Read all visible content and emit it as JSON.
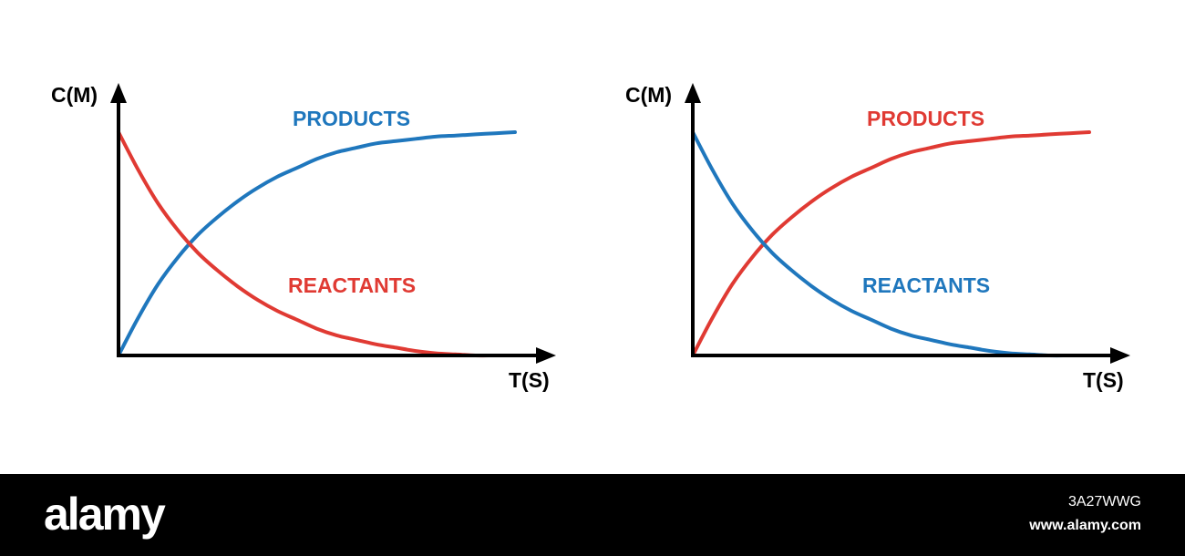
{
  "chart_data": [
    {
      "type": "line",
      "xlabel": "T(S)",
      "ylabel": "C(M)",
      "xlim": [
        0,
        10
      ],
      "ylim": [
        0,
        1
      ],
      "x": [
        0,
        0.5,
        1,
        1.5,
        2,
        2.5,
        3,
        3.5,
        4,
        4.5,
        5,
        5.5,
        6,
        6.5,
        7,
        7.5,
        8,
        8.5,
        9,
        9.5,
        10
      ],
      "series": [
        {
          "name": "PRODUCTS",
          "color": "#1f77bd",
          "values": [
            0,
            0.17,
            0.32,
            0.44,
            0.54,
            0.62,
            0.69,
            0.75,
            0.8,
            0.84,
            0.88,
            0.91,
            0.93,
            0.95,
            0.96,
            0.97,
            0.98,
            0.985,
            0.99,
            0.995,
            1.0
          ]
        },
        {
          "name": "REACTANTS",
          "color": "#e03a33",
          "values": [
            1.0,
            0.83,
            0.68,
            0.56,
            0.46,
            0.38,
            0.31,
            0.25,
            0.2,
            0.16,
            0.12,
            0.09,
            0.07,
            0.05,
            0.035,
            0.02,
            0.01,
            0.005,
            0.0,
            0.0,
            0.0
          ]
        }
      ]
    },
    {
      "type": "line",
      "xlabel": "T(S)",
      "ylabel": "C(M)",
      "xlim": [
        0,
        10
      ],
      "ylim": [
        0,
        1
      ],
      "x": [
        0,
        0.5,
        1,
        1.5,
        2,
        2.5,
        3,
        3.5,
        4,
        4.5,
        5,
        5.5,
        6,
        6.5,
        7,
        7.5,
        8,
        8.5,
        9,
        9.5,
        10
      ],
      "series": [
        {
          "name": "PRODUCTS",
          "color": "#e03a33",
          "values": [
            0,
            0.17,
            0.32,
            0.44,
            0.54,
            0.62,
            0.69,
            0.75,
            0.8,
            0.84,
            0.88,
            0.91,
            0.93,
            0.95,
            0.96,
            0.97,
            0.98,
            0.985,
            0.99,
            0.995,
            1.0
          ]
        },
        {
          "name": "REACTANTS",
          "color": "#1f77bd",
          "values": [
            1.0,
            0.83,
            0.68,
            0.56,
            0.46,
            0.38,
            0.31,
            0.25,
            0.2,
            0.16,
            0.12,
            0.09,
            0.07,
            0.05,
            0.035,
            0.02,
            0.01,
            0.005,
            0.0,
            0.0,
            0.0
          ]
        }
      ]
    }
  ],
  "footer": {
    "brand": "alamy",
    "image_id": "3A27WWG",
    "site": "www.alamy.com"
  }
}
